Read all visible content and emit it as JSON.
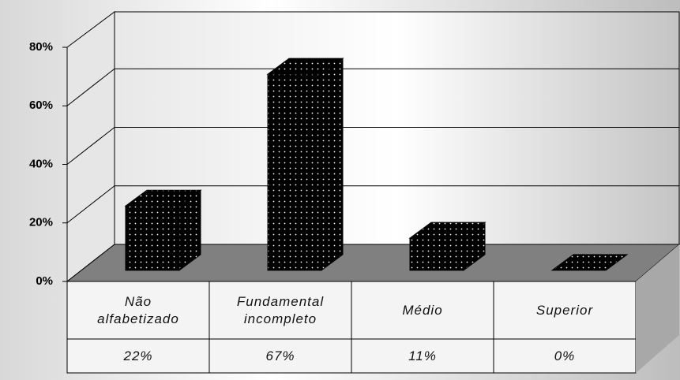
{
  "chart_data": {
    "type": "bar3d",
    "categories": [
      "Não alfabetizado",
      "Fundamental incompleto",
      "Médio",
      "Superior"
    ],
    "values": [
      22,
      67,
      11,
      0
    ],
    "value_labels": [
      "22%",
      "67%",
      "11%",
      "0%"
    ],
    "color": "#000000",
    "ylim": [
      0,
      80
    ],
    "yticks": [
      {
        "value": 0,
        "label": "0%"
      },
      {
        "value": 20,
        "label": "20%"
      },
      {
        "value": 40,
        "label": "40%"
      },
      {
        "value": 60,
        "label": "60%"
      },
      {
        "value": 80,
        "label": "80%"
      }
    ],
    "grid": true
  }
}
